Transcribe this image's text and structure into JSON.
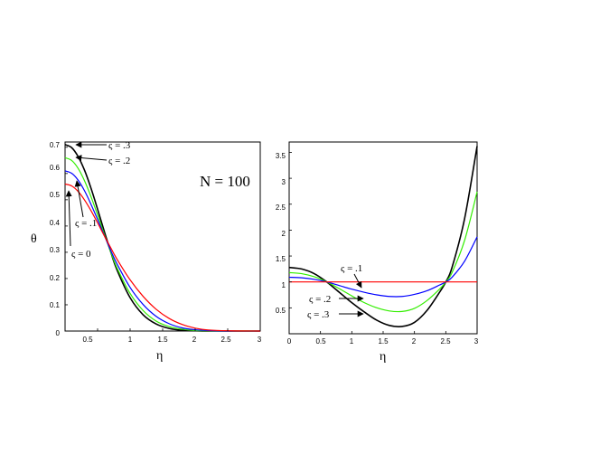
{
  "chart_data": [
    {
      "type": "line",
      "xlabel": "η",
      "ylabel": "θ",
      "xlim": [
        0,
        3
      ],
      "ylim": [
        0,
        0.72
      ],
      "x_ticks": [
        "0.5",
        "1",
        "1.5",
        "2",
        "2.5",
        "3"
      ],
      "y_ticks": [
        "0",
        "0.1",
        "0.2",
        "0.3",
        "0.4",
        "0.5",
        "0.6",
        "0.7"
      ],
      "annotation": "N = 100",
      "series": [
        {
          "name": "ς = 0",
          "color": "#ff0000",
          "x": [
            0,
            0.1,
            0.2,
            0.3,
            0.4,
            0.5,
            0.6,
            0.7,
            0.8,
            1.0,
            1.2,
            1.4,
            1.6,
            1.8,
            2.0,
            2.2,
            2.5,
            3.0
          ],
          "y": [
            0.56,
            0.553,
            0.532,
            0.499,
            0.458,
            0.412,
            0.364,
            0.318,
            0.273,
            0.195,
            0.132,
            0.083,
            0.048,
            0.025,
            0.011,
            0.004,
            0.001,
            0.0
          ]
        },
        {
          "name": "ς = .1",
          "color": "#0000ff",
          "x": [
            0,
            0.1,
            0.2,
            0.3,
            0.4,
            0.5,
            0.6,
            0.7,
            0.8,
            1.0,
            1.2,
            1.4,
            1.6,
            1.8,
            2.0,
            2.2,
            2.5,
            3.0
          ],
          "y": [
            0.61,
            0.601,
            0.575,
            0.534,
            0.482,
            0.425,
            0.366,
            0.308,
            0.255,
            0.166,
            0.101,
            0.056,
            0.028,
            0.012,
            0.005,
            0.002,
            0.0,
            0.0
          ]
        },
        {
          "name": "ς = .2",
          "color": "#33ee00",
          "x": [
            0,
            0.1,
            0.2,
            0.3,
            0.4,
            0.5,
            0.6,
            0.7,
            0.8,
            1.0,
            1.2,
            1.4,
            1.6,
            1.8,
            2.0,
            2.2,
            2.5,
            3.0
          ],
          "y": [
            0.66,
            0.65,
            0.62,
            0.572,
            0.511,
            0.442,
            0.371,
            0.302,
            0.24,
            0.143,
            0.078,
            0.038,
            0.017,
            0.007,
            0.002,
            0.001,
            0.0,
            0.0
          ]
        },
        {
          "name": "ς = .3",
          "color": "#000000",
          "x": [
            0,
            0.1,
            0.2,
            0.3,
            0.4,
            0.5,
            0.6,
            0.7,
            0.8,
            1.0,
            1.2,
            1.4,
            1.6,
            1.8,
            2.0,
            2.2,
            2.5,
            3.0
          ],
          "y": [
            0.71,
            0.699,
            0.665,
            0.612,
            0.543,
            0.464,
            0.382,
            0.303,
            0.232,
            0.127,
            0.062,
            0.027,
            0.01,
            0.003,
            0.001,
            0.0,
            0.0,
            0.0
          ]
        }
      ],
      "labels": [
        "ς = .3",
        "ς = .2",
        "ς = .1",
        "ς = 0"
      ]
    },
    {
      "type": "line",
      "xlabel": "η",
      "ylabel": "",
      "xlim": [
        0,
        3
      ],
      "ylim": [
        0,
        3.7
      ],
      "x_ticks": [
        "0",
        "0.5",
        "1",
        "1.5",
        "2",
        "2.5",
        "3"
      ],
      "y_ticks": [
        "0.5",
        "1",
        "1.5",
        "2",
        "2.5",
        "3",
        "3.5"
      ],
      "series": [
        {
          "name": "ς = .1",
          "color": "#ff0000",
          "x": [
            0,
            3.0
          ],
          "y": [
            1.0,
            1.0
          ]
        },
        {
          "name": "",
          "color": "#0000ff",
          "x": [
            0,
            0.2,
            0.4,
            0.6,
            0.8,
            1.0,
            1.2,
            1.4,
            1.6,
            1.8,
            2.0,
            2.2,
            2.4,
            2.5,
            2.6,
            2.8,
            3.0
          ],
          "y": [
            1.09,
            1.08,
            1.05,
            1.0,
            0.93,
            0.86,
            0.8,
            0.75,
            0.72,
            0.72,
            0.76,
            0.83,
            0.94,
            1.0,
            1.09,
            1.4,
            1.87
          ]
        },
        {
          "name": "ς = .2",
          "color": "#33ee00",
          "x": [
            0,
            0.2,
            0.4,
            0.6,
            0.8,
            1.0,
            1.2,
            1.4,
            1.6,
            1.8,
            2.0,
            2.2,
            2.4,
            2.5,
            2.6,
            2.8,
            3.0
          ],
          "y": [
            1.18,
            1.16,
            1.1,
            1.0,
            0.87,
            0.73,
            0.6,
            0.5,
            0.44,
            0.43,
            0.49,
            0.64,
            0.86,
            1.0,
            1.18,
            1.8,
            2.74
          ]
        },
        {
          "name": "ς = .3",
          "color": "#000000",
          "x": [
            0,
            0.2,
            0.4,
            0.6,
            0.8,
            1.0,
            1.2,
            1.4,
            1.6,
            1.8,
            2.0,
            2.2,
            2.4,
            2.5,
            2.6,
            2.8,
            3.0
          ],
          "y": [
            1.28,
            1.25,
            1.16,
            1.0,
            0.8,
            0.6,
            0.42,
            0.26,
            0.16,
            0.14,
            0.22,
            0.45,
            0.8,
            1.0,
            1.28,
            2.22,
            3.62
          ]
        }
      ],
      "labels": [
        "ς = .1",
        "ς = .2",
        "ς = .3"
      ]
    }
  ]
}
